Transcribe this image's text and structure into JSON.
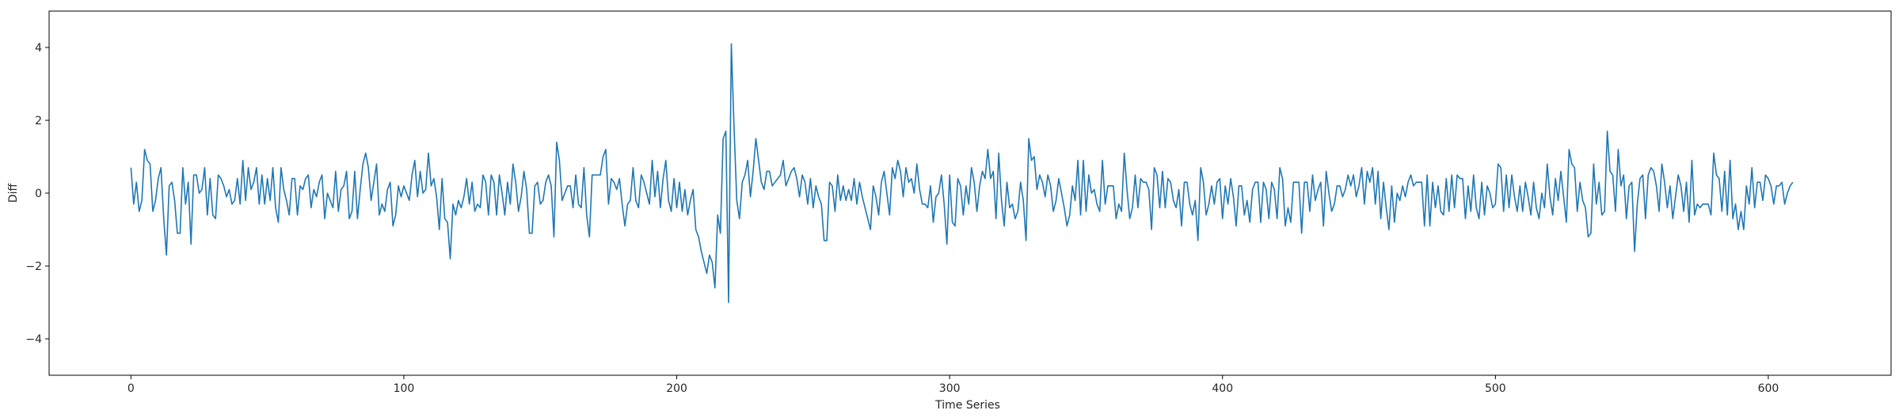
{
  "chart_data": {
    "type": "line",
    "title": "",
    "xlabel": "Time Series",
    "ylabel": "Diff",
    "xlim": [
      -30,
      645
    ],
    "ylim": [
      -5,
      5
    ],
    "xticks": [
      0,
      100,
      200,
      300,
      400,
      500,
      600
    ],
    "yticks": [
      -4,
      -2,
      0,
      2,
      4
    ],
    "grid": false,
    "legend": "none",
    "series_color": "#1f77b4",
    "series": [
      {
        "values": [
          0.7,
          -0.3,
          0.3,
          -0.5,
          -0.2,
          1.2,
          0.9,
          0.8,
          -0.5,
          -0.2,
          0.4,
          0.7,
          -0.7,
          -1.7,
          0.2,
          0.3,
          -0.2,
          -1.1,
          -1.1,
          0.7,
          -0.3,
          0.3,
          -1.4,
          0.5,
          0.5,
          0.0,
          0.1,
          0.7,
          -0.6,
          0.4,
          -0.6,
          -0.7,
          0.5,
          0.4,
          0.2,
          -0.1,
          0.1,
          -0.3,
          -0.2,
          0.4,
          -0.3,
          0.9,
          -0.2,
          0.7,
          0.1,
          0.3,
          0.7,
          -0.3,
          0.5,
          -0.3,
          0.4,
          -0.2,
          0.7,
          -0.4,
          -0.8,
          0.7,
          0.1,
          -0.2,
          -0.6,
          0.4,
          0.4,
          -0.6,
          0.2,
          0.1,
          0.4,
          0.5,
          -0.4,
          0.1,
          -0.1,
          0.3,
          0.5,
          -0.7,
          0.0,
          -0.2,
          -0.4,
          0.6,
          -0.5,
          0.1,
          0.2,
          0.6,
          -0.7,
          -0.5,
          0.6,
          -0.7,
          0.1,
          0.8,
          1.1,
          0.7,
          -0.2,
          0.3,
          0.8,
          -0.6,
          -0.3,
          -0.5,
          0.1,
          0.3,
          -0.9,
          -0.6,
          0.2,
          -0.1,
          0.2,
          0.0,
          -0.2,
          0.5,
          0.9,
          -0.1,
          0.6,
          0.0,
          0.1,
          1.1,
          0.2,
          0.4,
          -0.1,
          -1.0,
          0.4,
          -0.7,
          -0.8,
          -1.8,
          -0.3,
          -0.6,
          -0.2,
          -0.4,
          -0.1,
          0.4,
          -0.3,
          0.3,
          -0.5,
          -0.3,
          -0.4,
          0.5,
          0.3,
          -0.6,
          0.5,
          0.3,
          -0.6,
          0.5,
          0.0,
          -0.6,
          0.3,
          -0.3,
          0.8,
          0.3,
          -0.5,
          -0.1,
          0.6,
          0.1,
          -1.1,
          -1.1,
          0.2,
          0.3,
          -0.3,
          -0.2,
          0.3,
          0.5,
          0.2,
          -1.2,
          1.4,
          0.9,
          -0.2,
          0.0,
          0.2,
          0.2,
          -0.4,
          0.5,
          -0.3,
          -0.4,
          0.7,
          -0.6,
          -1.2,
          0.5,
          0.5,
          0.5,
          0.5,
          1.0,
          1.2,
          -0.3,
          0.4,
          0.3,
          0.1,
          0.4,
          -0.3,
          -0.9,
          -0.3,
          -0.2,
          0.7,
          -0.2,
          -0.4,
          0.5,
          0.3,
          0.0,
          -0.3,
          0.9,
          -0.1,
          0.6,
          -0.4,
          0.4,
          0.9,
          -0.2,
          -0.5,
          0.4,
          -0.4,
          0.3,
          -0.5,
          0.1,
          -0.6,
          -0.2,
          0.1,
          -1.0,
          -1.2,
          -1.6,
          -1.9,
          -2.2,
          -1.7,
          -1.9,
          -2.6,
          -0.6,
          -1.1,
          1.5,
          1.7,
          -3.0,
          4.1,
          1.8,
          -0.2,
          -0.7,
          0.3,
          0.5,
          0.9,
          -0.1,
          0.6,
          1.5,
          0.9,
          0.3,
          0.1,
          0.6,
          0.6,
          0.2,
          0.3,
          0.4,
          0.5,
          0.9,
          0.2,
          0.4,
          0.6,
          0.7,
          0.4,
          -0.1,
          0.5,
          0.3,
          -0.3,
          0.4,
          -0.4,
          0.2,
          -0.1,
          -0.3,
          -1.3,
          -1.3,
          0.3,
          0.2,
          -0.5,
          0.5,
          -0.2,
          0.2,
          -0.2,
          0.1,
          -0.2,
          0.4,
          -0.3,
          0.3,
          -0.1,
          -0.4,
          -0.7,
          -1.0,
          0.2,
          -0.1,
          -0.6,
          0.3,
          0.6,
          0.0,
          -0.6,
          0.7,
          0.4,
          0.9,
          0.6,
          -0.1,
          0.7,
          0.3,
          0.4,
          0.0,
          0.8,
          0.1,
          -0.3,
          -0.3,
          -0.4,
          0.2,
          -0.8,
          -0.1,
          0.0,
          0.5,
          -0.3,
          -1.4,
          0.5,
          -0.8,
          -0.9,
          0.4,
          0.2,
          -0.6,
          0.2,
          -0.3,
          0.7,
          0.3,
          -0.5,
          0.2,
          0.6,
          0.4,
          1.2,
          0.4,
          0.6,
          -0.7,
          1.1,
          -0.2,
          -0.9,
          0.3,
          -0.4,
          -0.3,
          -0.7,
          -0.5,
          0.3,
          -0.2,
          -1.3,
          1.5,
          0.9,
          1.0,
          0.1,
          0.5,
          0.3,
          -0.1,
          0.5,
          0.2,
          -0.5,
          -0.2,
          0.4,
          0.0,
          -0.4,
          -0.9,
          -0.6,
          0.2,
          -0.2,
          0.9,
          -0.6,
          0.9,
          -0.5,
          0.5,
          0.0,
          0.1,
          -0.3,
          -0.5,
          0.9,
          -0.3,
          0.2,
          0.2,
          0.2,
          -0.7,
          -0.3,
          -0.5,
          1.1,
          0.1,
          -0.7,
          -0.4,
          0.5,
          -0.4,
          0.4,
          0.3,
          0.3,
          0.1,
          -1.0,
          0.7,
          0.5,
          -0.4,
          0.6,
          -0.4,
          0.4,
          0.3,
          -0.2,
          -0.4,
          0.1,
          -0.9,
          0.3,
          0.3,
          -0.3,
          -0.6,
          -0.2,
          -1.3,
          0.7,
          0.3,
          -0.6,
          -0.3,
          0.2,
          -0.3,
          0.3,
          0.4,
          -0.7,
          0.2,
          -0.3,
          0.4,
          -0.1,
          -0.9,
          0.2,
          0.2,
          -0.6,
          -0.2,
          -0.8,
          0.1,
          0.3,
          0.3,
          -0.8,
          0.3,
          0.1,
          -0.7,
          0.3,
          0.1,
          -0.7,
          0.7,
          0.4,
          -0.9,
          -0.4,
          -0.8,
          0.3,
          0.3,
          0.3,
          -1.1,
          0.3,
          0.3,
          -0.5,
          0.5,
          -0.2,
          0.1,
          0.3,
          -0.9,
          0.6,
          0.0,
          -0.5,
          -0.3,
          0.2,
          0.2,
          -0.1,
          0.1,
          0.5,
          0.2,
          0.5,
          -0.1,
          0.2,
          0.7,
          -0.3,
          0.6,
          0.3,
          0.7,
          -0.3,
          0.6,
          -0.7,
          0.3,
          -0.4,
          -1.0,
          0.2,
          -0.8,
          0.0,
          -0.2,
          0.2,
          -0.1,
          0.3,
          0.5,
          0.2,
          0.3,
          0.3,
          0.3,
          -0.9,
          0.5,
          -0.9,
          0.3,
          -0.4,
          0.2,
          -0.5,
          -0.6,
          0.4,
          -0.5,
          0.5,
          -0.4,
          0.5,
          0.4,
          0.4,
          -0.7,
          0.2,
          -0.5,
          0.5,
          -0.4,
          -0.7,
          0.3,
          -0.6,
          0.2,
          0.0,
          -0.4,
          -0.3,
          0.8,
          0.7,
          -0.5,
          0.5,
          -0.4,
          0.5,
          -0.1,
          -0.5,
          0.2,
          -0.5,
          0.3,
          -0.1,
          -0.6,
          0.3,
          -0.4,
          -0.7,
          0.0,
          -0.4,
          0.8,
          -0.1,
          -0.6,
          0.4,
          -0.2,
          0.6,
          -0.1,
          -0.8,
          1.2,
          0.8,
          0.7,
          -0.5,
          0.3,
          -0.2,
          -0.4,
          -1.2,
          -1.1,
          0.8,
          -0.3,
          0.3,
          -0.6,
          -0.5,
          1.7,
          0.6,
          0.5,
          -0.5,
          1.2,
          0.2,
          0.5,
          -0.7,
          0.2,
          0.3,
          -1.6,
          -0.3,
          0.4,
          0.5,
          -0.7,
          0.5,
          0.7,
          0.6,
          0.2,
          -0.5,
          0.8,
          0.3,
          -0.4,
          0.2,
          -0.7,
          -0.1,
          0.5,
          0.2,
          -0.5,
          0.3,
          -0.8,
          0.9,
          -0.6,
          -0.3,
          -0.4,
          -0.3,
          -0.3,
          -0.3,
          -0.6,
          1.1,
          0.5,
          0.4,
          -0.5,
          0.6,
          -0.6,
          0.9,
          -0.7,
          -0.3,
          -1.0,
          -0.5,
          -1.0,
          0.2,
          -0.3,
          0.7,
          -0.4,
          0.3,
          0.3,
          -0.2,
          0.5,
          0.4,
          0.2,
          -0.3,
          0.2,
          0.2,
          0.3,
          -0.3,
          0.0,
          0.2,
          0.3
        ]
      }
    ]
  }
}
